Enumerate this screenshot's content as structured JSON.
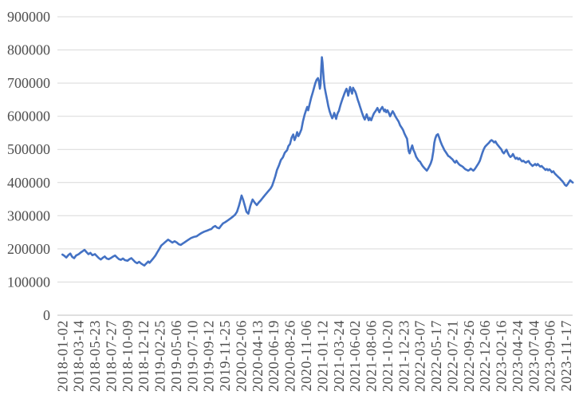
{
  "chart_data": {
    "type": "line",
    "title": "",
    "xlabel": "",
    "ylabel": "",
    "legend": "none",
    "grid": "horizontal",
    "ylim": [
      0,
      900000
    ],
    "y_ticks": [
      0,
      100000,
      200000,
      300000,
      400000,
      500000,
      600000,
      700000,
      800000,
      900000
    ],
    "x_tick_labels": [
      "2018-01-02",
      "2018-03-14",
      "2018-05-23",
      "2018-07-27",
      "2018-10-09",
      "2018-12-12",
      "2019-02-25",
      "2019-05-06",
      "2019-07-10",
      "2019-09-12",
      "2019-11-25",
      "2020-02-06",
      "2020-04-13",
      "2020-06-19",
      "2020-08-26",
      "2020-11-06",
      "2021-01-12",
      "2021-03-24",
      "2021-06-02",
      "2021-08-06",
      "2021-10-20",
      "2021-12-23",
      "2022-03-07",
      "2022-05-17",
      "2022-07-21",
      "2022-09-26",
      "2022-12-06",
      "2023-02-16",
      "2023-04-24",
      "2023-07-04",
      "2023-09-06",
      "2023-11-17"
    ],
    "x_days_per_tick": 50,
    "line_color": "#4472C4",
    "points": [
      [
        0,
        183000
      ],
      [
        6,
        179000
      ],
      [
        12,
        174000
      ],
      [
        18,
        181000
      ],
      [
        24,
        186000
      ],
      [
        30,
        176000
      ],
      [
        36,
        172000
      ],
      [
        42,
        180000
      ],
      [
        50,
        184000
      ],
      [
        56,
        189000
      ],
      [
        62,
        193000
      ],
      [
        68,
        197000
      ],
      [
        74,
        190000
      ],
      [
        80,
        184000
      ],
      [
        86,
        188000
      ],
      [
        92,
        181000
      ],
      [
        100,
        184000
      ],
      [
        106,
        178000
      ],
      [
        112,
        172000
      ],
      [
        118,
        168000
      ],
      [
        124,
        173000
      ],
      [
        130,
        177000
      ],
      [
        136,
        171000
      ],
      [
        142,
        169000
      ],
      [
        150,
        173000
      ],
      [
        156,
        177000
      ],
      [
        162,
        180000
      ],
      [
        168,
        174000
      ],
      [
        174,
        169000
      ],
      [
        180,
        167000
      ],
      [
        186,
        171000
      ],
      [
        192,
        166000
      ],
      [
        200,
        164000
      ],
      [
        206,
        169000
      ],
      [
        212,
        172000
      ],
      [
        218,
        166000
      ],
      [
        224,
        160000
      ],
      [
        230,
        157000
      ],
      [
        236,
        161000
      ],
      [
        242,
        156000
      ],
      [
        248,
        152000
      ],
      [
        252,
        150000
      ],
      [
        256,
        154000
      ],
      [
        260,
        158000
      ],
      [
        264,
        162000
      ],
      [
        268,
        158000
      ],
      [
        274,
        165000
      ],
      [
        280,
        172000
      ],
      [
        286,
        180000
      ],
      [
        292,
        190000
      ],
      [
        298,
        200000
      ],
      [
        304,
        210000
      ],
      [
        311,
        216000
      ],
      [
        318,
        222000
      ],
      [
        325,
        228000
      ],
      [
        331,
        224000
      ],
      [
        338,
        219000
      ],
      [
        345,
        223000
      ],
      [
        352,
        219000
      ],
      [
        358,
        214000
      ],
      [
        364,
        212000
      ],
      [
        370,
        216000
      ],
      [
        376,
        220000
      ],
      [
        382,
        224000
      ],
      [
        388,
        228000
      ],
      [
        396,
        233000
      ],
      [
        404,
        236000
      ],
      [
        413,
        238000
      ],
      [
        420,
        243000
      ],
      [
        428,
        248000
      ],
      [
        436,
        252000
      ],
      [
        445,
        255000
      ],
      [
        452,
        258000
      ],
      [
        458,
        260000
      ],
      [
        464,
        266000
      ],
      [
        470,
        269000
      ],
      [
        476,
        264000
      ],
      [
        482,
        262000
      ],
      [
        488,
        270000
      ],
      [
        494,
        277000
      ],
      [
        500,
        280000
      ],
      [
        506,
        284000
      ],
      [
        513,
        289000
      ],
      [
        519,
        293000
      ],
      [
        525,
        298000
      ],
      [
        531,
        303000
      ],
      [
        537,
        312000
      ],
      [
        543,
        330000
      ],
      [
        547,
        345000
      ],
      [
        551,
        361000
      ],
      [
        556,
        348000
      ],
      [
        561,
        330000
      ],
      [
        566,
        312000
      ],
      [
        572,
        306000
      ],
      [
        578,
        330000
      ],
      [
        585,
        349000
      ],
      [
        591,
        340000
      ],
      [
        598,
        332000
      ],
      [
        604,
        340000
      ],
      [
        610,
        346000
      ],
      [
        617,
        355000
      ],
      [
        623,
        362000
      ],
      [
        628,
        368000
      ],
      [
        634,
        375000
      ],
      [
        640,
        382000
      ],
      [
        645,
        390000
      ],
      [
        650,
        404000
      ],
      [
        655,
        420000
      ],
      [
        660,
        438000
      ],
      [
        666,
        452000
      ],
      [
        672,
        468000
      ],
      [
        678,
        476000
      ],
      [
        684,
        490000
      ],
      [
        691,
        498000
      ],
      [
        695,
        510000
      ],
      [
        700,
        516000
      ],
      [
        705,
        536000
      ],
      [
        710,
        545000
      ],
      [
        714,
        528000
      ],
      [
        718,
        538000
      ],
      [
        722,
        552000
      ],
      [
        726,
        540000
      ],
      [
        730,
        548000
      ],
      [
        735,
        560000
      ],
      [
        740,
        585000
      ],
      [
        745,
        605000
      ],
      [
        750,
        620000
      ],
      [
        753,
        628000
      ],
      [
        756,
        618000
      ],
      [
        760,
        635000
      ],
      [
        765,
        655000
      ],
      [
        770,
        672000
      ],
      [
        774,
        686000
      ],
      [
        778,
        700000
      ],
      [
        782,
        710000
      ],
      [
        786,
        715000
      ],
      [
        789,
        705000
      ],
      [
        792,
        683000
      ],
      [
        794,
        695000
      ],
      [
        796,
        740000
      ],
      [
        798,
        778000
      ],
      [
        800,
        762000
      ],
      [
        802,
        735000
      ],
      [
        804,
        710000
      ],
      [
        807,
        685000
      ],
      [
        810,
        669000
      ],
      [
        814,
        650000
      ],
      [
        818,
        630000
      ],
      [
        822,
        615000
      ],
      [
        826,
        603000
      ],
      [
        830,
        594000
      ],
      [
        833,
        600000
      ],
      [
        836,
        610000
      ],
      [
        839,
        601000
      ],
      [
        842,
        592000
      ],
      [
        845,
        604000
      ],
      [
        848,
        612000
      ],
      [
        850,
        615000
      ],
      [
        853,
        626000
      ],
      [
        856,
        636000
      ],
      [
        859,
        645000
      ],
      [
        862,
        654000
      ],
      [
        865,
        662000
      ],
      [
        868,
        670000
      ],
      [
        871,
        677000
      ],
      [
        874,
        683000
      ],
      [
        877,
        673000
      ],
      [
        879,
        662000
      ],
      [
        882,
        676000
      ],
      [
        885,
        688000
      ],
      [
        888,
        678000
      ],
      [
        891,
        668000
      ],
      [
        894,
        686000
      ],
      [
        897,
        680000
      ],
      [
        900,
        676000
      ],
      [
        903,
        668000
      ],
      [
        906,
        658000
      ],
      [
        909,
        648000
      ],
      [
        912,
        640000
      ],
      [
        915,
        630000
      ],
      [
        918,
        621000
      ],
      [
        921,
        612000
      ],
      [
        924,
        604000
      ],
      [
        927,
        596000
      ],
      [
        930,
        590000
      ],
      [
        933,
        598000
      ],
      [
        936,
        606000
      ],
      [
        939,
        596000
      ],
      [
        942,
        588000
      ],
      [
        945,
        595000
      ],
      [
        948,
        590000
      ],
      [
        950,
        588000
      ],
      [
        953,
        596000
      ],
      [
        956,
        604000
      ],
      [
        959,
        610000
      ],
      [
        963,
        615000
      ],
      [
        966,
        620000
      ],
      [
        969,
        625000
      ],
      [
        972,
        618000
      ],
      [
        975,
        612000
      ],
      [
        978,
        619000
      ],
      [
        981,
        624000
      ],
      [
        984,
        628000
      ],
      [
        987,
        621000
      ],
      [
        990,
        615000
      ],
      [
        993,
        620000
      ],
      [
        996,
        612000
      ],
      [
        1000,
        618000
      ],
      [
        1004,
        610000
      ],
      [
        1008,
        600000
      ],
      [
        1012,
        608000
      ],
      [
        1016,
        615000
      ],
      [
        1020,
        608000
      ],
      [
        1024,
        600000
      ],
      [
        1029,
        592000
      ],
      [
        1034,
        584000
      ],
      [
        1039,
        572000
      ],
      [
        1044,
        565000
      ],
      [
        1048,
        558000
      ],
      [
        1052,
        548000
      ],
      [
        1056,
        540000
      ],
      [
        1060,
        532000
      ],
      [
        1065,
        495000
      ],
      [
        1068,
        488000
      ],
      [
        1072,
        500000
      ],
      [
        1076,
        512000
      ],
      [
        1080,
        498000
      ],
      [
        1084,
        490000
      ],
      [
        1088,
        478000
      ],
      [
        1092,
        472000
      ],
      [
        1096,
        466000
      ],
      [
        1100,
        463000
      ],
      [
        1104,
        456000
      ],
      [
        1108,
        450000
      ],
      [
        1113,
        444000
      ],
      [
        1117,
        440000
      ],
      [
        1121,
        436000
      ],
      [
        1125,
        442000
      ],
      [
        1129,
        450000
      ],
      [
        1133,
        458000
      ],
      [
        1137,
        470000
      ],
      [
        1141,
        495000
      ],
      [
        1144,
        520000
      ],
      [
        1147,
        533000
      ],
      [
        1151,
        543000
      ],
      [
        1155,
        546000
      ],
      [
        1159,
        536000
      ],
      [
        1163,
        524000
      ],
      [
        1167,
        514000
      ],
      [
        1171,
        506000
      ],
      [
        1175,
        498000
      ],
      [
        1179,
        492000
      ],
      [
        1183,
        486000
      ],
      [
        1187,
        480000
      ],
      [
        1191,
        478000
      ],
      [
        1195,
        474000
      ],
      [
        1200,
        470000
      ],
      [
        1204,
        464000
      ],
      [
        1208,
        460000
      ],
      [
        1212,
        466000
      ],
      [
        1216,
        460000
      ],
      [
        1220,
        455000
      ],
      [
        1224,
        452000
      ],
      [
        1228,
        450000
      ],
      [
        1232,
        447000
      ],
      [
        1236,
        443000
      ],
      [
        1240,
        440000
      ],
      [
        1244,
        438000
      ],
      [
        1248,
        436000
      ],
      [
        1252,
        438000
      ],
      [
        1256,
        442000
      ],
      [
        1260,
        439000
      ],
      [
        1264,
        436000
      ],
      [
        1268,
        440000
      ],
      [
        1272,
        446000
      ],
      [
        1276,
        452000
      ],
      [
        1280,
        458000
      ],
      [
        1284,
        466000
      ],
      [
        1288,
        478000
      ],
      [
        1292,
        490000
      ],
      [
        1296,
        500000
      ],
      [
        1300,
        508000
      ],
      [
        1304,
        512000
      ],
      [
        1308,
        516000
      ],
      [
        1312,
        520000
      ],
      [
        1316,
        525000
      ],
      [
        1320,
        528000
      ],
      [
        1324,
        525000
      ],
      [
        1328,
        521000
      ],
      [
        1332,
        524000
      ],
      [
        1336,
        517000
      ],
      [
        1340,
        512000
      ],
      [
        1345,
        506000
      ],
      [
        1350,
        500000
      ],
      [
        1354,
        492000
      ],
      [
        1358,
        488000
      ],
      [
        1362,
        494000
      ],
      [
        1366,
        499000
      ],
      [
        1370,
        490000
      ],
      [
        1374,
        482000
      ],
      [
        1378,
        477000
      ],
      [
        1382,
        480000
      ],
      [
        1386,
        486000
      ],
      [
        1390,
        478000
      ],
      [
        1394,
        472000
      ],
      [
        1398,
        475000
      ],
      [
        1402,
        470000
      ],
      [
        1406,
        473000
      ],
      [
        1410,
        468000
      ],
      [
        1414,
        464000
      ],
      [
        1418,
        466000
      ],
      [
        1422,
        462000
      ],
      [
        1426,
        460000
      ],
      [
        1430,
        463000
      ],
      [
        1434,
        465000
      ],
      [
        1438,
        458000
      ],
      [
        1442,
        454000
      ],
      [
        1446,
        450000
      ],
      [
        1450,
        453000
      ],
      [
        1454,
        456000
      ],
      [
        1458,
        452000
      ],
      [
        1462,
        456000
      ],
      [
        1466,
        452000
      ],
      [
        1470,
        448000
      ],
      [
        1474,
        450000
      ],
      [
        1478,
        446000
      ],
      [
        1482,
        442000
      ],
      [
        1486,
        438000
      ],
      [
        1490,
        441000
      ],
      [
        1494,
        437000
      ],
      [
        1498,
        440000
      ],
      [
        1502,
        436000
      ],
      [
        1506,
        431000
      ],
      [
        1510,
        434000
      ],
      [
        1514,
        428000
      ],
      [
        1518,
        424000
      ],
      [
        1522,
        420000
      ],
      [
        1526,
        416000
      ],
      [
        1530,
        413000
      ],
      [
        1534,
        408000
      ],
      [
        1538,
        404000
      ],
      [
        1542,
        399000
      ],
      [
        1546,
        393000
      ],
      [
        1550,
        390000
      ],
      [
        1554,
        395000
      ],
      [
        1558,
        401000
      ],
      [
        1562,
        407000
      ],
      [
        1566,
        403000
      ],
      [
        1570,
        400000
      ]
    ]
  },
  "colors": {
    "line": "#4472C4",
    "gridline": "#D9D9D9",
    "axis_line": "#BFBFBF",
    "tick_text": "#4d4d4d",
    "background": "#ffffff"
  }
}
